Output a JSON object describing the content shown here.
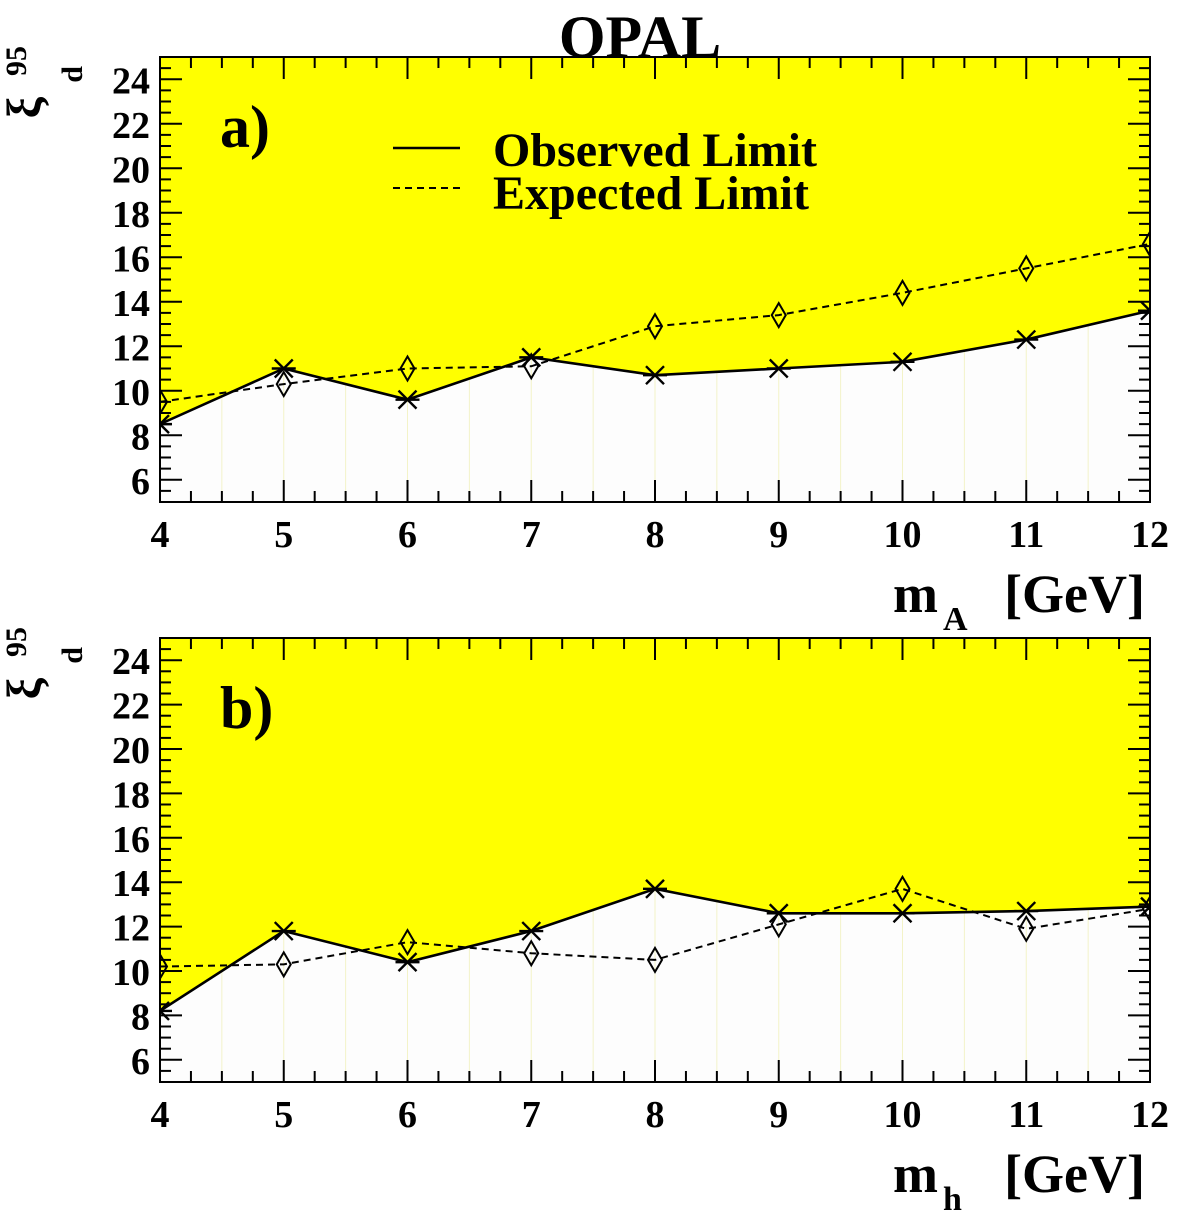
{
  "figure_title": "OPAL",
  "legend": {
    "observed": "Observed Limit",
    "expected": "Expected Limit"
  },
  "colors": {
    "excluded_fill": "#ffff00",
    "allowed_fill": "#fdfdfd",
    "line": "#000000"
  },
  "chart_data": [
    {
      "type": "line",
      "panel_label": "a)",
      "ylabel": {
        "symbol": "ξ",
        "sub": "d",
        "sup": "95"
      },
      "xlabel": {
        "main": "m",
        "sub": "A",
        "unit": "[GeV]"
      },
      "xlim": [
        4,
        12
      ],
      "ylim": [
        5,
        25
      ],
      "xticks": [
        4,
        5,
        6,
        7,
        8,
        9,
        10,
        11,
        12
      ],
      "yticks": [
        6,
        8,
        10,
        12,
        14,
        16,
        18,
        20,
        22,
        24
      ],
      "legend_position": "top-center",
      "shaded_region": "above observed limit",
      "series": [
        {
          "name": "Observed Limit",
          "style": "solid",
          "marker": "asterisk",
          "x": [
            4,
            5,
            6,
            7,
            8,
            9,
            10,
            11,
            12
          ],
          "y": [
            8.5,
            11.0,
            9.6,
            11.5,
            10.7,
            11.0,
            11.3,
            12.3,
            13.6
          ]
        },
        {
          "name": "Expected Limit",
          "style": "dashed",
          "marker": "diamond",
          "x": [
            4,
            5,
            6,
            7,
            8,
            9,
            10,
            11,
            12
          ],
          "y": [
            9.5,
            10.3,
            11.0,
            11.1,
            12.9,
            13.4,
            14.4,
            15.5,
            16.6
          ]
        }
      ]
    },
    {
      "type": "line",
      "panel_label": "b)",
      "ylabel": {
        "symbol": "ξ",
        "sub": "d",
        "sup": "95"
      },
      "xlabel": {
        "main": "m",
        "sub": "h",
        "unit": "[GeV]"
      },
      "xlim": [
        4,
        12
      ],
      "ylim": [
        5,
        25
      ],
      "xticks": [
        4,
        5,
        6,
        7,
        8,
        9,
        10,
        11,
        12
      ],
      "yticks": [
        6,
        8,
        10,
        12,
        14,
        16,
        18,
        20,
        22,
        24
      ],
      "shaded_region": "above observed limit",
      "series": [
        {
          "name": "Observed Limit",
          "style": "solid",
          "marker": "asterisk",
          "x": [
            4,
            5,
            6,
            7,
            8,
            9,
            10,
            11,
            12
          ],
          "y": [
            8.2,
            11.8,
            10.4,
            11.8,
            13.7,
            12.6,
            12.6,
            12.7,
            12.9
          ]
        },
        {
          "name": "Expected Limit",
          "style": "dashed",
          "marker": "diamond",
          "x": [
            4,
            5,
            6,
            7,
            8,
            9,
            10,
            11,
            12
          ],
          "y": [
            10.2,
            10.3,
            11.3,
            10.8,
            10.5,
            12.1,
            13.7,
            11.9,
            12.8
          ]
        }
      ]
    }
  ]
}
